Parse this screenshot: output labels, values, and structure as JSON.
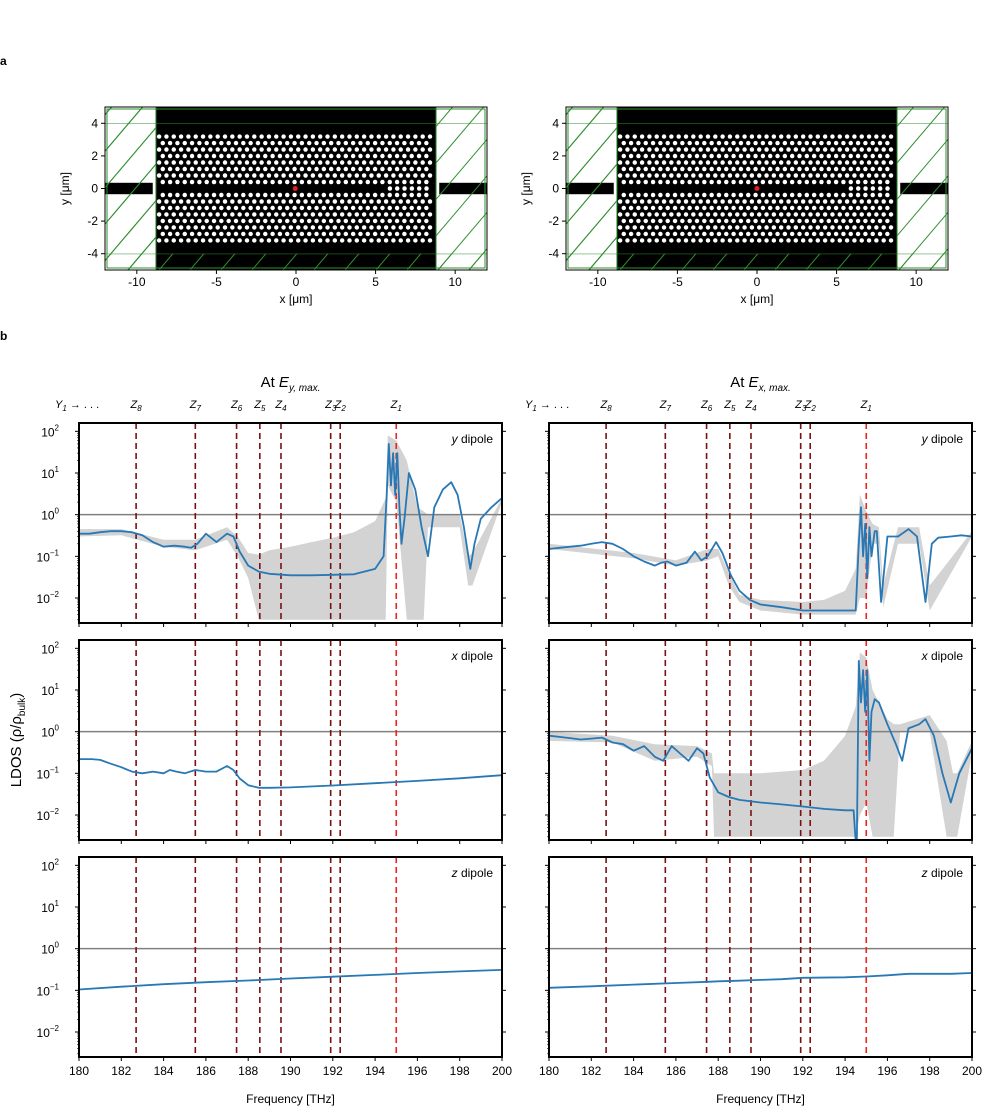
{
  "panel_labels": {
    "a": "a",
    "b": "b"
  },
  "chart_data": [
    {
      "type": "diagram",
      "id": "geom-left",
      "xlabel": "x [μm]",
      "ylabel": "y [μm]",
      "xlim": [
        -12,
        12
      ],
      "ylim": [
        -5,
        5
      ],
      "xticks": [
        "-10",
        "-5",
        "0",
        "5",
        "10"
      ],
      "yticks": [
        "-4",
        "-2",
        "0",
        "2",
        "4"
      ],
      "slab_x": [
        -8.8,
        8.8
      ],
      "waveguide_gap_x": [
        -8.8,
        5.9
      ],
      "source_point": {
        "x": -0.05,
        "y": 0
      }
    },
    {
      "type": "diagram",
      "id": "geom-right",
      "xlabel": "x [μm]",
      "ylabel": "y [μm]",
      "xlim": [
        -12,
        12
      ],
      "ylim": [
        -5,
        5
      ],
      "xticks": [
        "-10",
        "-5",
        "0",
        "5",
        "10"
      ],
      "yticks": [
        "-4",
        "-2",
        "0",
        "2",
        "4"
      ],
      "slab_x": [
        -8.8,
        8.8
      ],
      "waveguide_gap_x": [
        -8.8,
        5.9
      ],
      "source_point": {
        "x": 0.0,
        "y": 0
      }
    },
    {
      "type": "line",
      "column_title": "At E_{y, max.}",
      "title_main": "At ",
      "title_var": "E",
      "title_sub": "y, max.",
      "xlabel": "Frequency [THz]",
      "ylabel": "LDOS (ρ/ρ_bulk)",
      "ylabel_text": "LDOS (ρ/ρ",
      "ylabel_sub": "bulk",
      "ylabel_close": ")",
      "xlim": [
        180,
        200
      ],
      "ylim_log10": [
        -2.6,
        2.2
      ],
      "xticks": [
        "180",
        "182",
        "184",
        "186",
        "188",
        "190",
        "192",
        "194",
        "196",
        "198",
        "200"
      ],
      "yticks": [
        {
          "base": "10",
          "exp": "2"
        },
        {
          "base": "10",
          "exp": "1"
        },
        {
          "base": "10",
          "exp": "0"
        },
        {
          "base": "10",
          "exp": "−1"
        },
        {
          "base": "10",
          "exp": "−2"
        }
      ],
      "reference_line": 1,
      "mode_markers": [
        {
          "letter": "Y",
          "sub": "1",
          "suffix": " → . . .",
          "freq": null
        },
        {
          "letter": "Z",
          "sub": "8",
          "freq": 182.7
        },
        {
          "letter": "Z",
          "sub": "7",
          "freq": 185.5
        },
        {
          "letter": "Z",
          "sub": "6",
          "freq": 187.45
        },
        {
          "letter": "Z",
          "sub": "5",
          "freq": 188.55
        },
        {
          "letter": "Z",
          "sub": "4",
          "freq": 189.55
        },
        {
          "letter": "Z",
          "sub": "3",
          "freq": 191.9
        },
        {
          "letter": "Z",
          "sub": "2",
          "freq": 192.35
        },
        {
          "letter": "Z",
          "sub": "1",
          "freq": 195.0
        }
      ],
      "subplots": [
        {
          "label_var": "y",
          "label_rest": " dipole",
          "series": [
            {
              "name": "LDOS",
              "color": "#2878b5",
              "x": [
                180,
                180.5,
                181,
                181.5,
                182,
                182.5,
                183,
                183.5,
                184,
                184.5,
                185,
                185.3,
                185.6,
                186,
                186.5,
                187,
                187.3,
                187.6,
                188,
                188.5,
                189,
                190,
                191,
                192,
                193,
                194,
                194.4,
                194.55,
                194.65,
                194.75,
                194.85,
                194.95,
                195.05,
                195.15,
                195.25,
                195.4,
                195.6,
                195.9,
                196.2,
                196.5,
                196.8,
                197.2,
                197.6,
                197.9,
                198.2,
                198.5,
                198.7,
                199,
                199.5,
                200
              ],
              "y": [
                0.35,
                0.35,
                0.38,
                0.4,
                0.4,
                0.38,
                0.32,
                0.22,
                0.17,
                0.18,
                0.17,
                0.16,
                0.2,
                0.35,
                0.22,
                0.35,
                0.3,
                0.13,
                0.06,
                0.043,
                0.038,
                0.035,
                0.035,
                0.036,
                0.037,
                0.05,
                0.1,
                3,
                50,
                5,
                30,
                3,
                30,
                1.5,
                0.2,
                0.9,
                10,
                4,
                0.5,
                0.1,
                1.5,
                4,
                6,
                3,
                0.5,
                0.05,
                0.2,
                0.8,
                1.5,
                2.5
              ]
            }
          ],
          "band": {
            "x": [
              180,
              182,
              184,
              185.5,
              187,
              187.5,
              188,
              188.5,
              189,
              190,
              191,
              192,
              193,
              194,
              194.5,
              194.6,
              195,
              195.5,
              196,
              196.3,
              196.5,
              198,
              198.4,
              198.6,
              200
            ],
            "upper": [
              0.45,
              0.45,
              0.25,
              0.25,
              0.5,
              0.3,
              0.12,
              0.11,
              0.14,
              0.17,
              0.22,
              0.28,
              0.38,
              0.7,
              2.5,
              80,
              60,
              20,
              1.5,
              1.2,
              1.0,
              1.0,
              0.1,
              0.12,
              2.5
            ],
            "lower": [
              0.3,
              0.32,
              0.17,
              0.14,
              0.25,
              0.1,
              0.03,
              0.003,
              0.003,
              0.003,
              0.003,
              0.003,
              0.003,
              0.003,
              0.003,
              5,
              2,
              0.003,
              0.003,
              0.003,
              0.5,
              0.5,
              0.02,
              0.02,
              2.0
            ]
          }
        },
        {
          "label_var": "x",
          "label_rest": " dipole",
          "series": [
            {
              "name": "LDOS",
              "color": "#2878b5",
              "x": [
                180,
                180.6,
                181,
                181.5,
                182,
                182.5,
                183,
                183.5,
                184,
                184.3,
                184.6,
                185,
                185.5,
                186,
                186.5,
                187,
                187.3,
                187.6,
                188,
                188.5,
                189,
                190,
                192,
                194,
                196,
                198,
                200
              ],
              "y": [
                0.22,
                0.22,
                0.21,
                0.17,
                0.14,
                0.11,
                0.1,
                0.11,
                0.1,
                0.12,
                0.11,
                0.1,
                0.12,
                0.11,
                0.11,
                0.15,
                0.12,
                0.075,
                0.052,
                0.045,
                0.045,
                0.046,
                0.051,
                0.058,
                0.066,
                0.076,
                0.09
              ]
            }
          ]
        },
        {
          "label_var": "z",
          "label_rest": " dipole",
          "series": [
            {
              "name": "LDOS",
              "color": "#2878b5",
              "x": [
                180,
                182,
                184,
                186,
                188,
                190,
                192,
                194,
                196,
                198,
                200
              ],
              "y": [
                0.105,
                0.122,
                0.14,
                0.157,
                0.172,
                0.192,
                0.212,
                0.235,
                0.26,
                0.285,
                0.31
              ]
            }
          ]
        }
      ]
    },
    {
      "type": "line",
      "column_title": "At E_{x, max.}",
      "title_main": "At ",
      "title_var": "E",
      "title_sub": "x, max.",
      "xlabel": "Frequency [THz]",
      "xlim": [
        180,
        200
      ],
      "ylim_log10": [
        -2.6,
        2.2
      ],
      "xticks": [
        "180",
        "182",
        "184",
        "186",
        "188",
        "190",
        "192",
        "194",
        "196",
        "198",
        "200"
      ],
      "reference_line": 1,
      "mode_markers": [
        {
          "letter": "Y",
          "sub": "1",
          "suffix": " → . . .",
          "freq": null
        },
        {
          "letter": "Z",
          "sub": "8",
          "freq": 182.7
        },
        {
          "letter": "Z",
          "sub": "7",
          "freq": 185.5
        },
        {
          "letter": "Z",
          "sub": "6",
          "freq": 187.45
        },
        {
          "letter": "Z",
          "sub": "5",
          "freq": 188.55
        },
        {
          "letter": "Z",
          "sub": "4",
          "freq": 189.55
        },
        {
          "letter": "Z",
          "sub": "3",
          "freq": 191.9
        },
        {
          "letter": "Z",
          "sub": "2",
          "freq": 192.35
        },
        {
          "letter": "Z",
          "sub": "1",
          "freq": 195.0
        }
      ],
      "subplots": [
        {
          "label_var": "y",
          "label_rest": " dipole",
          "series": [
            {
              "name": "LDOS",
              "color": "#2878b5",
              "x": [
                180,
                180.5,
                181,
                181.5,
                182,
                182.5,
                183,
                183.5,
                184,
                184.5,
                185,
                185.3,
                185.6,
                186,
                186.5,
                186.9,
                187.2,
                187.5,
                187.9,
                188.2,
                188.6,
                189,
                189.5,
                190,
                191,
                192,
                193,
                194,
                194.5,
                194.65,
                194.75,
                194.85,
                194.95,
                195.05,
                195.15,
                195.25,
                195.4,
                195.5,
                195.7,
                196,
                196.5,
                197,
                197.4,
                197.8,
                198.1,
                198.4,
                199,
                199.5,
                200
              ],
              "y": [
                0.15,
                0.16,
                0.17,
                0.18,
                0.2,
                0.22,
                0.2,
                0.15,
                0.1,
                0.075,
                0.06,
                0.07,
                0.075,
                0.06,
                0.07,
                0.13,
                0.08,
                0.1,
                0.22,
                0.12,
                0.035,
                0.015,
                0.009,
                0.007,
                0.006,
                0.005,
                0.005,
                0.005,
                0.005,
                0.2,
                1.5,
                0.1,
                0.6,
                0.03,
                0.5,
                0.1,
                0.4,
                0.4,
                0.008,
                0.3,
                0.3,
                0.45,
                0.3,
                0.008,
                0.2,
                0.28,
                0.3,
                0.32,
                0.3
              ]
            }
          ],
          "band": {
            "x": [
              180,
              184,
              186,
              187.5,
              188,
              188.5,
              189,
              190,
              192,
              193,
              194,
              194.5,
              194.7,
              195,
              195.3,
              195.6,
              195.8,
              196.5,
              197.5,
              198,
              200
            ],
            "upper": [
              0.2,
              0.12,
              0.08,
              0.15,
              0.15,
              0.04,
              0.012,
              0.009,
              0.008,
              0.009,
              0.015,
              0.05,
              3,
              1.2,
              0.6,
              0.5,
              0.02,
              0.5,
              0.5,
              0.02,
              0.4
            ],
            "lower": [
              0.15,
              0.09,
              0.06,
              0.08,
              0.1,
              0.02,
              0.008,
              0.005,
              0.004,
              0.004,
              0.004,
              0.004,
              0.01,
              0.01,
              0.2,
              0.2,
              0.006,
              0.2,
              0.2,
              0.005,
              0.3
            ]
          }
        },
        {
          "label_var": "x",
          "label_rest": " dipole",
          "series": [
            {
              "name": "LDOS",
              "color": "#2878b5",
              "x": [
                180,
                180.5,
                181,
                181.5,
                182,
                182.5,
                183,
                183.5,
                184,
                184.5,
                185,
                185.4,
                185.8,
                186.2,
                186.6,
                187,
                187.3,
                187.6,
                188,
                188.5,
                189,
                190,
                191,
                192,
                193,
                194,
                194.4,
                194.55,
                194.65,
                194.75,
                194.85,
                194.95,
                195.05,
                195.15,
                195.25,
                195.4,
                195.6,
                196,
                196.4,
                196.7,
                197,
                197.5,
                197.8,
                198.2,
                198.6,
                199,
                199.4,
                200
              ],
              "y": [
                0.8,
                0.75,
                0.7,
                0.65,
                0.68,
                0.72,
                0.55,
                0.5,
                0.35,
                0.45,
                0.25,
                0.2,
                0.45,
                0.3,
                0.2,
                0.4,
                0.3,
                0.08,
                0.035,
                0.027,
                0.023,
                0.02,
                0.018,
                0.016,
                0.014,
                0.013,
                0.013,
                0.001,
                50,
                5,
                30,
                3,
                30,
                0.2,
                3,
                6,
                5,
                1.5,
                0.5,
                0.2,
                1.2,
                1.5,
                2,
                0.8,
                0.1,
                0.02,
                0.1,
                0.4
              ]
            }
          ],
          "band": {
            "x": [
              180,
              183,
              185,
              187,
              187.7,
              187.8,
              188,
              190,
              192,
              193,
              194,
              194.5,
              194.7,
              195,
              195.3,
              196,
              196.3,
              196.6,
              198,
              198.8,
              199.1,
              199.3,
              200
            ],
            "upper": [
              1.0,
              0.8,
              0.5,
              0.45,
              0.3,
              0.1,
              0.1,
              0.1,
              0.12,
              0.2,
              0.8,
              4,
              80,
              60,
              10,
              2,
              1.5,
              1.5,
              2.5,
              0.6,
              0.1,
              0.1,
              0.6
            ],
            "lower": [
              0.6,
              0.55,
              0.2,
              0.25,
              0.15,
              0.003,
              0.003,
              0.003,
              0.003,
              0.003,
              0.003,
              0.003,
              0.01,
              0.02,
              0.003,
              0.003,
              0.003,
              1.0,
              1.0,
              0.003,
              0.003,
              0.003,
              0.3
            ]
          }
        },
        {
          "label_var": "z",
          "label_rest": " dipole",
          "series": [
            {
              "name": "LDOS",
              "color": "#2878b5",
              "x": [
                180,
                182,
                184,
                186,
                187.5,
                188,
                189,
                190,
                191,
                192,
                194,
                195,
                196,
                197,
                198,
                199,
                200
              ],
              "y": [
                0.115,
                0.125,
                0.137,
                0.15,
                0.16,
                0.165,
                0.17,
                0.178,
                0.185,
                0.2,
                0.205,
                0.215,
                0.23,
                0.25,
                0.25,
                0.25,
                0.26
              ]
            }
          ]
        }
      ]
    }
  ]
}
